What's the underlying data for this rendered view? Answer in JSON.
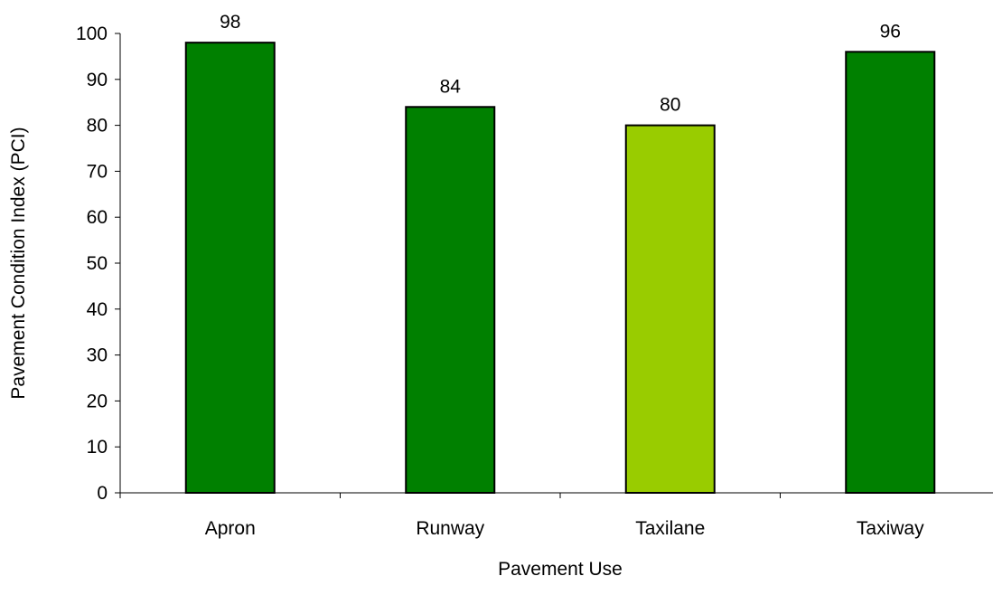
{
  "chart_data": {
    "type": "bar",
    "categories": [
      "Apron",
      "Runway",
      "Taxilane",
      "Taxiway"
    ],
    "values": [
      98,
      84,
      80,
      96
    ],
    "bar_colors": [
      "#008000",
      "#008000",
      "#99CC00",
      "#008000"
    ],
    "xlabel": "Pavement Use",
    "ylabel": "Pavement Condition Index (PCI)",
    "ylim": [
      0,
      100
    ],
    "ytick_step": 10,
    "grid": false,
    "legend": "none",
    "data_labels": true
  }
}
